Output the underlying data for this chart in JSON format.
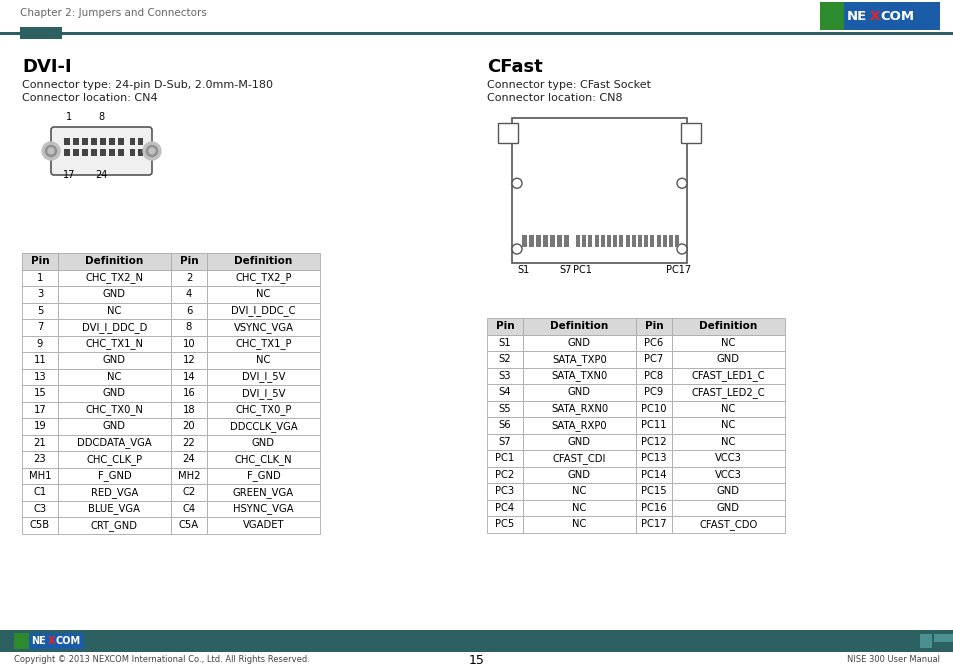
{
  "page_header": "Chapter 2: Jumpers and Connectors",
  "page_number": "15",
  "footer_left": "Copyright © 2013 NEXCOM International Co., Ltd. All Rights Reserved.",
  "footer_right": "NISE 300 User Manual",
  "dvi_title": "DVI-I",
  "dvi_connector_type": "Connector type: 24-pin D-Sub, 2.0mm-M-180",
  "dvi_connector_loc": "Connector location: CN4",
  "cfast_title": "CFast",
  "cfast_connector_type": "Connector type: CFast Socket",
  "cfast_connector_loc": "Connector location: CN8",
  "dvi_table_headers": [
    "Pin",
    "Definition",
    "Pin",
    "Definition"
  ],
  "dvi_table_rows": [
    [
      "1",
      "CHC_TX2_N",
      "2",
      "CHC_TX2_P"
    ],
    [
      "3",
      "GND",
      "4",
      "NC"
    ],
    [
      "5",
      "NC",
      "6",
      "DVI_I_DDC_C"
    ],
    [
      "7",
      "DVI_I_DDC_D",
      "8",
      "VSYNC_VGA"
    ],
    [
      "9",
      "CHC_TX1_N",
      "10",
      "CHC_TX1_P"
    ],
    [
      "11",
      "GND",
      "12",
      "NC"
    ],
    [
      "13",
      "NC",
      "14",
      "DVI_I_5V"
    ],
    [
      "15",
      "GND",
      "16",
      "DVI_I_5V"
    ],
    [
      "17",
      "CHC_TX0_N",
      "18",
      "CHC_TX0_P"
    ],
    [
      "19",
      "GND",
      "20",
      "DDCCLK_VGA"
    ],
    [
      "21",
      "DDCDATA_VGA",
      "22",
      "GND"
    ],
    [
      "23",
      "CHC_CLK_P",
      "24",
      "CHC_CLK_N"
    ],
    [
      "MH1",
      "F_GND",
      "MH2",
      "F_GND"
    ],
    [
      "C1",
      "RED_VGA",
      "C2",
      "GREEN_VGA"
    ],
    [
      "C3",
      "BLUE_VGA",
      "C4",
      "HSYNC_VGA"
    ],
    [
      "C5B",
      "CRT_GND",
      "C5A",
      "VGADET"
    ]
  ],
  "cfast_table_headers": [
    "Pin",
    "Definition",
    "Pin",
    "Definition"
  ],
  "cfast_table_rows": [
    [
      "S1",
      "GND",
      "PC6",
      "NC"
    ],
    [
      "S2",
      "SATA_TXP0",
      "PC7",
      "GND"
    ],
    [
      "S3",
      "SATA_TXN0",
      "PC8",
      "CFAST_LED1_C"
    ],
    [
      "S4",
      "GND",
      "PC9",
      "CFAST_LED2_C"
    ],
    [
      "S5",
      "SATA_RXN0",
      "PC10",
      "NC"
    ],
    [
      "S6",
      "SATA_RXP0",
      "PC11",
      "NC"
    ],
    [
      "S7",
      "GND",
      "PC12",
      "NC"
    ],
    [
      "PC1",
      "CFAST_CDI",
      "PC13",
      "VCC3"
    ],
    [
      "PC2",
      "GND",
      "PC14",
      "VCC3"
    ],
    [
      "PC3",
      "NC",
      "PC15",
      "GND"
    ],
    [
      "PC4",
      "NC",
      "PC16",
      "GND"
    ],
    [
      "PC5",
      "NC",
      "PC17",
      "CFAST_CDO"
    ]
  ],
  "nexcom_blue": "#1a5ca8",
  "nexcom_green": "#2d8a2d",
  "teal_dark": "#2d6060",
  "teal_bar": "#336666",
  "header_text_color": "#666666",
  "table_header_bg": "#d8d8d8",
  "table_border": "#aaaaaa",
  "body_text": "#222222"
}
